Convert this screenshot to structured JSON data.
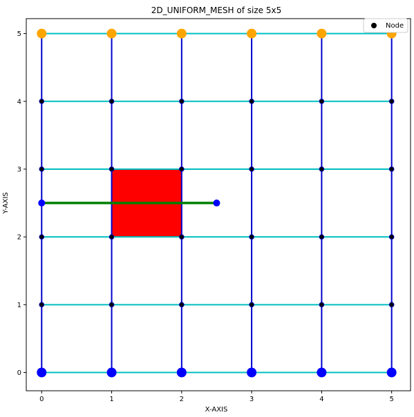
{
  "chart_data": {
    "type": "scatter",
    "title": "2D_UNIFORM_MESH of size 5x5",
    "xlabel": "X-AXIS",
    "ylabel": "Y-AXIS",
    "xlim": [
      -0.22,
      5.27
    ],
    "ylim": [
      -0.27,
      5.22
    ],
    "xticks": [
      0,
      1,
      2,
      3,
      4,
      5
    ],
    "yticks": [
      0,
      1,
      2,
      3,
      4,
      5
    ],
    "grid": false,
    "legend": {
      "position": "top-right",
      "entries": [
        "Node"
      ]
    },
    "colors": {
      "horizontal_edges": "#00bfbf",
      "vertical_edges": "#0000cc",
      "node": "#000000",
      "boundary_top": "#ffa500",
      "boundary_bottom": "#0000ff",
      "cell": "#ff0000",
      "segment": "#008000",
      "segment_end": "#0000ff"
    },
    "mesh": {
      "x": [
        0,
        1,
        2,
        3,
        4,
        5
      ],
      "y": [
        0,
        1,
        2,
        3,
        4,
        5
      ]
    },
    "boundary_top_nodes": [
      [
        0,
        5
      ],
      [
        1,
        5
      ],
      [
        2,
        5
      ],
      [
        3,
        5
      ],
      [
        4,
        5
      ],
      [
        5,
        5
      ]
    ],
    "boundary_bottom_nodes": [
      [
        0,
        0
      ],
      [
        1,
        0
      ],
      [
        2,
        0
      ],
      [
        3,
        0
      ],
      [
        4,
        0
      ],
      [
        5,
        0
      ]
    ],
    "highlighted_cell": {
      "x": [
        1,
        2
      ],
      "y": [
        2,
        3
      ]
    },
    "segment": {
      "from": [
        0,
        2.5
      ],
      "to": [
        2.5,
        2.5
      ]
    }
  }
}
